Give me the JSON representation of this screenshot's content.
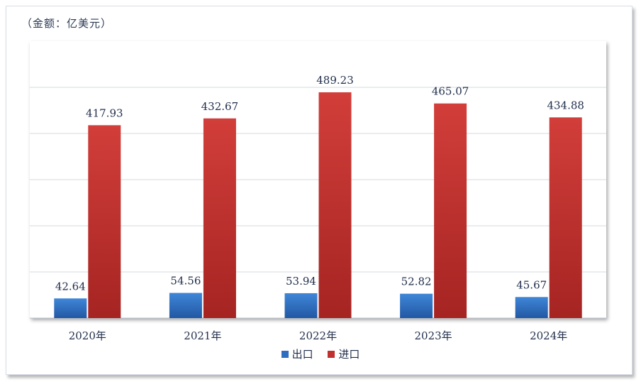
{
  "unit_label": "（金额：亿美元）",
  "chart_data": {
    "type": "bar",
    "categories": [
      "2020年",
      "2021年",
      "2022年",
      "2023年",
      "2024年"
    ],
    "series": [
      {
        "name": "出口",
        "values": [
          42.64,
          54.56,
          53.94,
          52.82,
          45.67
        ],
        "color": "#2e6fc0"
      },
      {
        "name": "进口",
        "values": [
          417.93,
          432.67,
          489.23,
          465.07,
          434.88
        ],
        "color": "#c0302e"
      }
    ],
    "ylim": [
      0,
      600
    ],
    "grid": true,
    "legend_position": "bottom",
    "value_labels": [
      "42.64",
      "54.56",
      "53.94",
      "52.82",
      "45.67",
      "417.93",
      "432.67",
      "489.23",
      "465.07",
      "434.88"
    ]
  },
  "legend": {
    "export_label": "出口",
    "import_label": "进口"
  }
}
